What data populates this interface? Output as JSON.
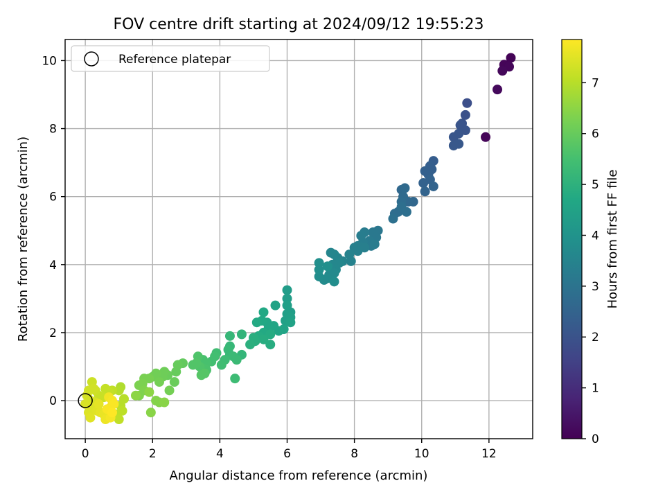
{
  "chart_data": {
    "type": "scatter",
    "title": "FOV centre drift starting at 2024/09/12 19:55:23",
    "xlabel": "Angular distance from reference (arcmin)",
    "ylabel": "Rotation from reference (arcmin)",
    "xlim": [
      -0.6,
      13.3
    ],
    "ylim": [
      -1.12,
      10.62
    ],
    "xticks": [
      0,
      2,
      4,
      6,
      8,
      10,
      12
    ],
    "yticks": [
      0,
      2,
      4,
      6,
      8,
      10
    ],
    "grid": true,
    "legend": {
      "position": "top-left",
      "entries": [
        "Reference platepar"
      ]
    },
    "reference_point": {
      "x": 0,
      "y": 0
    },
    "colorbar": {
      "label": "Hours from first FF file",
      "colormap": "viridis",
      "range": [
        0,
        7.85
      ],
      "ticks": [
        0,
        1,
        2,
        3,
        4,
        5,
        6,
        7
      ]
    },
    "points_xyt": [
      [
        12.65,
        10.08,
        0.05
      ],
      [
        12.55,
        9.86,
        0.08
      ],
      [
        12.45,
        9.88,
        0.1
      ],
      [
        12.6,
        9.82,
        0.12
      ],
      [
        12.4,
        9.7,
        0.15
      ],
      [
        12.25,
        9.15,
        0.18
      ],
      [
        11.9,
        7.75,
        0.1
      ],
      [
        11.35,
        8.75,
        1.9
      ],
      [
        11.3,
        8.4,
        1.95
      ],
      [
        11.2,
        8.15,
        2.0
      ],
      [
        11.15,
        8.1,
        2.05
      ],
      [
        11.3,
        7.95,
        2.05
      ],
      [
        11.1,
        7.85,
        2.1
      ],
      [
        10.95,
        7.75,
        2.1
      ],
      [
        11.1,
        7.55,
        2.15
      ],
      [
        10.95,
        7.5,
        2.15
      ],
      [
        10.35,
        7.05,
        2.3
      ],
      [
        10.25,
        6.9,
        2.35
      ],
      [
        10.3,
        6.8,
        2.35
      ],
      [
        10.2,
        6.65,
        2.4
      ],
      [
        10.1,
        6.75,
        2.4
      ],
      [
        10.25,
        6.5,
        2.45
      ],
      [
        10.05,
        6.4,
        2.45
      ],
      [
        10.35,
        6.3,
        2.5
      ],
      [
        10.1,
        6.15,
        2.5
      ],
      [
        9.75,
        5.85,
        2.6
      ],
      [
        9.6,
        5.85,
        2.65
      ],
      [
        9.4,
        6.2,
        2.65
      ],
      [
        9.5,
        6.25,
        2.7
      ],
      [
        9.45,
        6.0,
        2.7
      ],
      [
        9.4,
        5.85,
        2.75
      ],
      [
        9.3,
        5.55,
        2.8
      ],
      [
        9.2,
        5.5,
        2.8
      ],
      [
        9.55,
        5.55,
        2.85
      ],
      [
        9.4,
        5.7,
        2.85
      ],
      [
        9.15,
        5.35,
        2.9
      ],
      [
        8.7,
        5.0,
        3.1
      ],
      [
        8.55,
        4.95,
        3.15
      ],
      [
        8.65,
        4.8,
        3.15
      ],
      [
        8.45,
        4.7,
        3.2
      ],
      [
        8.5,
        4.55,
        3.2
      ],
      [
        8.6,
        4.6,
        3.25
      ],
      [
        8.3,
        4.95,
        3.25
      ],
      [
        8.2,
        4.85,
        3.3
      ],
      [
        8.25,
        4.65,
        3.3
      ],
      [
        8.1,
        4.55,
        3.35
      ],
      [
        8.3,
        4.5,
        3.35
      ],
      [
        8.0,
        4.5,
        3.4
      ],
      [
        8.1,
        4.4,
        3.4
      ],
      [
        7.85,
        4.3,
        3.45
      ],
      [
        7.9,
        4.1,
        3.45
      ],
      [
        7.65,
        4.1,
        3.5
      ],
      [
        7.5,
        4.2,
        3.5
      ],
      [
        7.4,
        4.3,
        3.55
      ],
      [
        7.3,
        4.35,
        3.55
      ],
      [
        7.55,
        4.05,
        3.6
      ],
      [
        7.35,
        4.0,
        3.6
      ],
      [
        7.45,
        3.85,
        3.65
      ],
      [
        7.3,
        3.9,
        3.65
      ],
      [
        7.25,
        3.7,
        3.7
      ],
      [
        7.4,
        3.75,
        3.7
      ],
      [
        7.2,
        3.6,
        3.75
      ],
      [
        7.1,
        3.55,
        3.75
      ],
      [
        7.4,
        3.5,
        3.8
      ],
      [
        6.95,
        3.65,
        3.8
      ],
      [
        6.95,
        3.85,
        3.85
      ],
      [
        6.95,
        4.05,
        3.85
      ],
      [
        7.2,
        3.95,
        3.9
      ],
      [
        6.0,
        3.25,
        4.3
      ],
      [
        6.0,
        3.0,
        4.35
      ],
      [
        6.1,
        2.6,
        4.35
      ],
      [
        6.0,
        2.8,
        4.4
      ],
      [
        6.0,
        2.55,
        4.4
      ],
      [
        6.1,
        2.45,
        4.45
      ],
      [
        5.95,
        2.35,
        4.45
      ],
      [
        6.1,
        2.3,
        4.5
      ],
      [
        5.65,
        2.8,
        4.55
      ],
      [
        5.9,
        2.1,
        4.55
      ],
      [
        5.75,
        2.05,
        4.6
      ],
      [
        5.6,
        2.2,
        4.6
      ],
      [
        5.45,
        2.15,
        4.65
      ],
      [
        5.4,
        2.3,
        4.65
      ],
      [
        5.3,
        2.6,
        4.7
      ],
      [
        5.25,
        2.35,
        4.7
      ],
      [
        5.1,
        2.3,
        4.75
      ],
      [
        5.3,
        2.0,
        4.75
      ],
      [
        5.15,
        1.9,
        4.8
      ],
      [
        5.5,
        1.95,
        4.8
      ],
      [
        5.5,
        1.65,
        4.85
      ],
      [
        5.3,
        1.8,
        4.85
      ],
      [
        5.0,
        1.85,
        4.9
      ],
      [
        5.05,
        1.75,
        4.9
      ],
      [
        4.9,
        1.65,
        4.95
      ],
      [
        4.65,
        1.95,
        5.1
      ],
      [
        4.65,
        1.35,
        5.15
      ],
      [
        4.3,
        1.9,
        5.2
      ],
      [
        4.3,
        1.6,
        5.2
      ],
      [
        4.25,
        1.5,
        5.25
      ],
      [
        4.3,
        1.35,
        5.25
      ],
      [
        4.4,
        1.3,
        5.3
      ],
      [
        4.5,
        1.2,
        5.3
      ],
      [
        4.45,
        0.65,
        5.35
      ],
      [
        4.15,
        1.2,
        5.35
      ],
      [
        4.05,
        1.05,
        5.4
      ],
      [
        3.9,
        1.4,
        5.4
      ],
      [
        3.85,
        1.3,
        5.45
      ],
      [
        3.75,
        1.15,
        5.45
      ],
      [
        3.6,
        1.1,
        5.55
      ],
      [
        3.5,
        1.2,
        5.55
      ],
      [
        3.5,
        0.95,
        5.6
      ],
      [
        3.6,
        0.9,
        5.6
      ],
      [
        3.4,
        1.0,
        5.65
      ],
      [
        3.35,
        1.3,
        5.65
      ],
      [
        3.3,
        1.1,
        5.7
      ],
      [
        3.2,
        1.05,
        5.7
      ],
      [
        3.55,
        0.8,
        5.75
      ],
      [
        3.45,
        0.75,
        5.75
      ],
      [
        2.9,
        1.1,
        5.95
      ],
      [
        2.75,
        1.05,
        6.0
      ],
      [
        2.7,
        0.85,
        6.0
      ],
      [
        2.65,
        0.55,
        6.05
      ],
      [
        2.45,
        0.75,
        6.05
      ],
      [
        2.35,
        0.85,
        6.1
      ],
      [
        2.3,
        0.7,
        6.1
      ],
      [
        2.1,
        0.8,
        6.15
      ],
      [
        2.0,
        0.7,
        6.15
      ],
      [
        2.5,
        0.3,
        6.2
      ],
      [
        2.2,
        0.55,
        6.2
      ],
      [
        1.9,
        0.65,
        6.25
      ],
      [
        1.75,
        0.65,
        6.25
      ],
      [
        1.7,
        0.5,
        6.3
      ],
      [
        1.6,
        0.45,
        6.3
      ],
      [
        1.75,
        0.3,
        6.35
      ],
      [
        1.6,
        0.15,
        6.35
      ],
      [
        2.1,
        0.0,
        6.4
      ],
      [
        2.2,
        -0.05,
        6.4
      ],
      [
        2.35,
        -0.05,
        6.45
      ],
      [
        1.95,
        -0.35,
        6.45
      ],
      [
        1.9,
        0.25,
        6.5
      ],
      [
        1.5,
        0.15,
        6.5
      ],
      [
        1.05,
        0.4,
        6.9
      ],
      [
        1.0,
        0.3,
        6.95
      ],
      [
        1.15,
        0.05,
        7.0
      ],
      [
        1.05,
        -0.15,
        7.0
      ],
      [
        1.1,
        -0.3,
        7.05
      ],
      [
        0.95,
        -0.4,
        7.05
      ],
      [
        1.0,
        -0.55,
        7.1
      ],
      [
        0.8,
        0.3,
        7.1
      ],
      [
        0.6,
        0.35,
        7.15
      ],
      [
        0.7,
        0.25,
        7.15
      ],
      [
        0.55,
        0.1,
        7.2
      ],
      [
        0.4,
        0.15,
        7.2
      ],
      [
        0.3,
        0.3,
        7.25
      ],
      [
        0.2,
        0.55,
        7.25
      ],
      [
        0.25,
        0.35,
        7.3
      ],
      [
        0.1,
        0.3,
        7.3
      ],
      [
        0.05,
        0.15,
        7.35
      ],
      [
        0.15,
        0.0,
        7.35
      ],
      [
        0.3,
        -0.05,
        7.4
      ],
      [
        0.0,
        -0.1,
        7.4
      ],
      [
        0.2,
        -0.2,
        7.45
      ],
      [
        0.1,
        -0.35,
        7.45
      ],
      [
        0.15,
        -0.5,
        7.5
      ],
      [
        0.35,
        -0.3,
        7.5
      ],
      [
        0.4,
        -0.1,
        7.55
      ],
      [
        0.45,
        -0.35,
        7.55
      ],
      [
        0.55,
        -0.4,
        7.6
      ],
      [
        0.7,
        -0.3,
        7.6
      ],
      [
        0.6,
        -0.55,
        7.65
      ],
      [
        0.75,
        -0.2,
        7.7
      ],
      [
        0.7,
        0.1,
        7.7
      ],
      [
        0.75,
        -0.5,
        7.75
      ],
      [
        0.8,
        0.0,
        7.75
      ],
      [
        0.85,
        -0.1,
        7.8
      ],
      [
        0.65,
        -0.25,
        7.8
      ],
      [
        0.8,
        -0.35,
        7.85
      ]
    ]
  }
}
